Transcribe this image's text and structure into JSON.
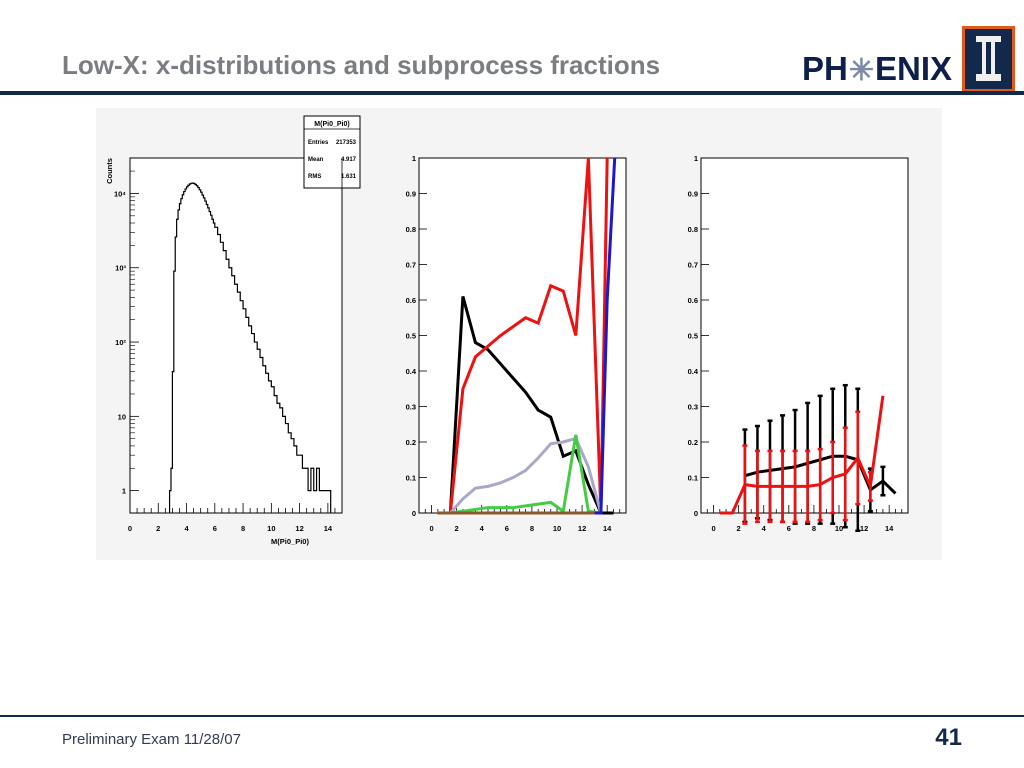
{
  "header": {
    "title": "Low-X: x-distributions and subprocess fractions",
    "logo_left": "PH",
    "logo_star": "✳",
    "logo_right": "ENIX"
  },
  "footer": {
    "text": "Preliminary Exam 11/28/07",
    "page_number": "41"
  },
  "colors": {
    "brand_navy": "#13294b",
    "brand_orange": "#e05a1b",
    "title_gray": "#7a7d82"
  },
  "chart_data": [
    {
      "type": "histogram",
      "title": "",
      "xlabel": "M(Pi0_Pi0)",
      "ylabel": "Counts",
      "log_y": true,
      "xlim": [
        0,
        15
      ],
      "ylim": [
        0.5,
        30000
      ],
      "xticks": [
        "0",
        "2",
        "4",
        "6",
        "8",
        "10",
        "12",
        "14"
      ],
      "yticks": [
        {
          "v": 1,
          "label": "1"
        },
        {
          "v": 10,
          "label": "10"
        },
        {
          "v": 100,
          "label": "10²"
        },
        {
          "v": 1000,
          "label": "10³"
        },
        {
          "v": 10000,
          "label": "10⁴"
        }
      ],
      "stats": {
        "name": "M(Pi0_Pi0)",
        "rows": [
          {
            "label": "Entries",
            "value": "217353"
          },
          {
            "label": "Mean",
            "value": "4.917"
          },
          {
            "label": "RMS",
            "value": "1.631"
          }
        ]
      },
      "bins": [
        [
          2.8,
          1
        ],
        [
          2.9,
          2
        ],
        [
          3.0,
          40
        ],
        [
          3.1,
          900
        ],
        [
          3.2,
          2600
        ],
        [
          3.3,
          4500
        ],
        [
          3.4,
          6000
        ],
        [
          3.5,
          7300
        ],
        [
          3.6,
          8500
        ],
        [
          3.7,
          9600
        ],
        [
          3.8,
          10600
        ],
        [
          3.9,
          11500
        ],
        [
          4.0,
          12300
        ],
        [
          4.1,
          12900
        ],
        [
          4.2,
          13400
        ],
        [
          4.3,
          13700
        ],
        [
          4.4,
          13800
        ],
        [
          4.5,
          13600
        ],
        [
          4.6,
          13200
        ],
        [
          4.7,
          12700
        ],
        [
          4.8,
          12000
        ],
        [
          4.9,
          11200
        ],
        [
          5.0,
          10400
        ],
        [
          5.1,
          9500
        ],
        [
          5.2,
          8700
        ],
        [
          5.3,
          7900
        ],
        [
          5.4,
          7100
        ],
        [
          5.5,
          6400
        ],
        [
          5.6,
          5700
        ],
        [
          5.7,
          5100
        ],
        [
          5.8,
          4500
        ],
        [
          5.9,
          4000
        ],
        [
          6.0,
          3500
        ],
        [
          6.2,
          2800
        ],
        [
          6.4,
          2200
        ],
        [
          6.6,
          1700
        ],
        [
          6.8,
          1300
        ],
        [
          7.0,
          1000
        ],
        [
          7.2,
          780
        ],
        [
          7.4,
          600
        ],
        [
          7.6,
          470
        ],
        [
          7.8,
          360
        ],
        [
          8.0,
          280
        ],
        [
          8.2,
          215
        ],
        [
          8.4,
          165
        ],
        [
          8.6,
          130
        ],
        [
          8.8,
          100
        ],
        [
          9.0,
          80
        ],
        [
          9.2,
          62
        ],
        [
          9.4,
          48
        ],
        [
          9.6,
          38
        ],
        [
          9.8,
          30
        ],
        [
          10.0,
          25
        ],
        [
          10.2,
          19
        ],
        [
          10.4,
          15
        ],
        [
          10.6,
          13
        ],
        [
          10.8,
          10
        ],
        [
          11.0,
          8
        ],
        [
          11.2,
          6
        ],
        [
          11.4,
          5
        ],
        [
          11.6,
          4
        ],
        [
          11.8,
          3
        ],
        [
          12.0,
          3
        ],
        [
          12.2,
          2
        ],
        [
          12.4,
          2
        ],
        [
          12.6,
          1
        ],
        [
          12.8,
          2
        ],
        [
          13.0,
          1
        ],
        [
          13.2,
          2
        ],
        [
          13.4,
          1
        ],
        [
          13.6,
          1
        ],
        [
          13.8,
          1
        ],
        [
          14.0,
          1
        ]
      ]
    },
    {
      "type": "line",
      "title": "",
      "xlim": [
        -1,
        15.5
      ],
      "ylim": [
        0,
        1
      ],
      "xticks": [
        "0",
        "2",
        "4",
        "6",
        "8",
        "10",
        "12",
        "14"
      ],
      "yticks": [
        "0",
        "0.1",
        "0.2",
        "0.3",
        "0.4",
        "0.5",
        "0.6",
        "0.7",
        "0.8",
        "0.9",
        "1"
      ],
      "series": [
        {
          "color": "#000000",
          "points": [
            [
              0.5,
              0
            ],
            [
              1.5,
              0
            ],
            [
              2.5,
              0.61
            ],
            [
              3.5,
              0.48
            ],
            [
              4.5,
              0.46
            ],
            [
              5.5,
              0.42
            ],
            [
              6.5,
              0.38
            ],
            [
              7.5,
              0.34
            ],
            [
              8.5,
              0.29
            ],
            [
              9.5,
              0.27
            ],
            [
              10.5,
              0.16
            ],
            [
              11.5,
              0.175
            ],
            [
              12.5,
              0.08
            ],
            [
              13.5,
              0
            ],
            [
              14.5,
              0
            ]
          ]
        },
        {
          "color": "#ee1111",
          "points": [
            [
              0.5,
              0
            ],
            [
              1.5,
              0
            ],
            [
              2.5,
              0.35
            ],
            [
              3.5,
              0.44
            ],
            [
              4.5,
              0.47
            ],
            [
              5.5,
              0.5
            ],
            [
              6.5,
              0.525
            ],
            [
              7.5,
              0.55
            ],
            [
              8.5,
              0.535
            ],
            [
              9.5,
              0.64
            ],
            [
              10.5,
              0.625
            ],
            [
              11.5,
              0.5
            ],
            [
              12.5,
              1.0
            ],
            [
              13.5,
              0
            ],
            [
              14.0,
              1.0
            ]
          ]
        },
        {
          "color": "#a8a8c8",
          "points": [
            [
              0.5,
              0
            ],
            [
              1.5,
              0
            ],
            [
              2.5,
              0.04
            ],
            [
              3.5,
              0.07
            ],
            [
              4.5,
              0.075
            ],
            [
              5.5,
              0.085
            ],
            [
              6.5,
              0.1
            ],
            [
              7.5,
              0.12
            ],
            [
              8.5,
              0.155
            ],
            [
              9.5,
              0.195
            ],
            [
              10.5,
              0.2
            ],
            [
              11.5,
              0.21
            ],
            [
              12.5,
              0.13
            ],
            [
              13.5,
              0
            ]
          ]
        },
        {
          "color": "#44cc44",
          "points": [
            [
              0.5,
              0
            ],
            [
              1.5,
              0
            ],
            [
              2.5,
              0.005
            ],
            [
              3.5,
              0.01
            ],
            [
              4.5,
              0.015
            ],
            [
              5.5,
              0.015
            ],
            [
              6.5,
              0.015
            ],
            [
              7.5,
              0.02
            ],
            [
              8.5,
              0.025
            ],
            [
              9.5,
              0.03
            ],
            [
              10.5,
              0.005
            ],
            [
              11.5,
              0.22
            ],
            [
              12.5,
              0.005
            ],
            [
              13.5,
              0
            ]
          ]
        },
        {
          "color": "#1a1acc",
          "points": [
            [
              0.5,
              0
            ],
            [
              12.5,
              0
            ],
            [
              13.5,
              0
            ],
            [
              14.0,
              0.6
            ],
            [
              14.6,
              1.0
            ]
          ]
        },
        {
          "color": "#8b5a2b",
          "points": [
            [
              0.5,
              0
            ],
            [
              13.0,
              0
            ]
          ]
        }
      ]
    },
    {
      "type": "line",
      "title": "",
      "xlim": [
        -1,
        15.5
      ],
      "ylim": [
        0,
        1
      ],
      "xticks": [
        "0",
        "2",
        "4",
        "6",
        "8",
        "10",
        "12",
        "14"
      ],
      "yticks": [
        "0",
        "0.1",
        "0.2",
        "0.3",
        "0.4",
        "0.5",
        "0.6",
        "0.7",
        "0.8",
        "0.9",
        "1"
      ],
      "series": [
        {
          "color": "#000000",
          "errors": true,
          "points": [
            [
              2.5,
              0.105,
              0.13
            ],
            [
              3.5,
              0.115,
              0.13
            ],
            [
              4.5,
              0.12,
              0.14
            ],
            [
              5.5,
              0.125,
              0.15
            ],
            [
              6.5,
              0.13,
              0.16
            ],
            [
              7.5,
              0.14,
              0.17
            ],
            [
              8.5,
              0.15,
              0.18
            ],
            [
              9.5,
              0.16,
              0.19
            ],
            [
              10.5,
              0.16,
              0.2
            ],
            [
              11.5,
              0.15,
              0.2
            ],
            [
              12.5,
              0.065,
              0.06
            ],
            [
              13.5,
              0.09,
              0.04
            ],
            [
              14.5,
              0.055,
              0
            ]
          ]
        },
        {
          "color": "#ee1111",
          "errors": true,
          "points": [
            [
              0.5,
              0,
              0
            ],
            [
              1.5,
              0,
              0
            ],
            [
              2.5,
              0.08,
              0.11
            ],
            [
              3.5,
              0.075,
              0.1
            ],
            [
              4.5,
              0.075,
              0.1
            ],
            [
              5.5,
              0.075,
              0.1
            ],
            [
              6.5,
              0.075,
              0.1
            ],
            [
              7.5,
              0.075,
              0.1
            ],
            [
              8.5,
              0.08,
              0.1
            ],
            [
              9.5,
              0.1,
              0.1
            ],
            [
              10.5,
              0.11,
              0.13
            ],
            [
              11.5,
              0.155,
              0.13
            ],
            [
              12.5,
              0.075,
              0.04
            ],
            [
              13.5,
              0.33,
              0
            ]
          ]
        }
      ]
    }
  ]
}
